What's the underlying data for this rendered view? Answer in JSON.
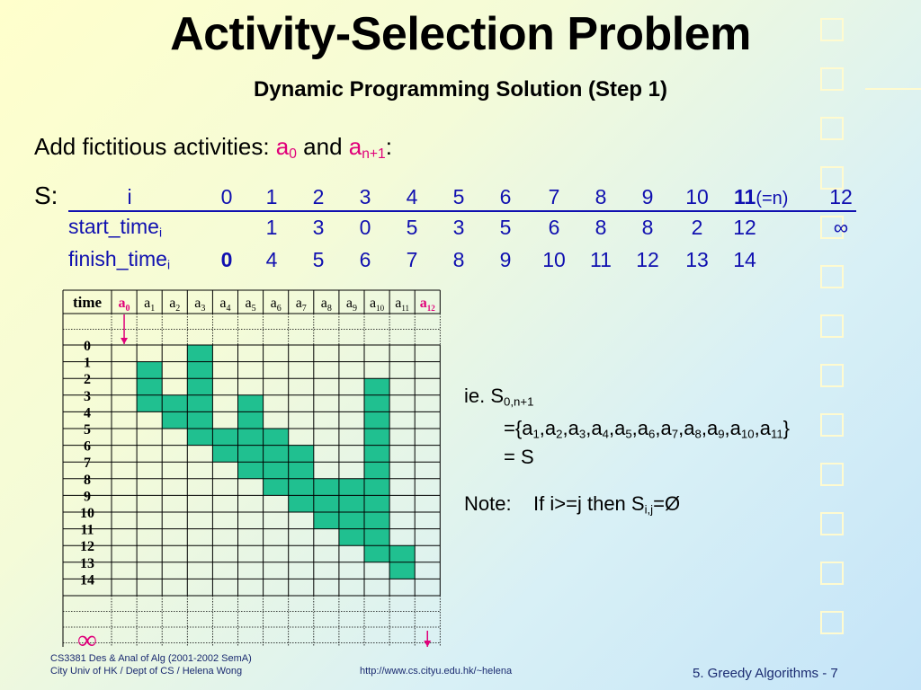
{
  "title": "Activity-Selection Problem",
  "subtitle": "Dynamic Programming Solution (Step 1)",
  "intro": {
    "prefix": "Add fictitious activities: ",
    "a0": "a",
    "a0_sub": "0",
    "and": " and ",
    "an1": "a",
    "an1_sub": "n+1",
    "suffix": ":"
  },
  "s_label": "S:",
  "table": {
    "row_i_label": "i",
    "row_start_label": "start_time",
    "row_start_sub": "i",
    "row_finish_label": "finish_time",
    "row_finish_sub": "i",
    "i_values": [
      "0",
      "1",
      "2",
      "3",
      "4",
      "5",
      "6",
      "7",
      "8",
      "9",
      "10",
      "11",
      "12"
    ],
    "i_11_note": "(=n)",
    "start_values": [
      "",
      "1",
      "3",
      "0",
      "5",
      "3",
      "5",
      "6",
      "8",
      "8",
      "2",
      "12",
      "∞"
    ],
    "finish_values": [
      "0",
      "4",
      "5",
      "6",
      "7",
      "8",
      "9",
      "10",
      "11",
      "12",
      "13",
      "14",
      ""
    ]
  },
  "grid": {
    "time_header": "time",
    "col_headers": [
      {
        "base": "a",
        "sub": "0",
        "red": true
      },
      {
        "base": "a",
        "sub": "1",
        "red": false
      },
      {
        "base": "a",
        "sub": "2",
        "red": false
      },
      {
        "base": "a",
        "sub": "3",
        "red": false
      },
      {
        "base": "a",
        "sub": "4",
        "red": false
      },
      {
        "base": "a",
        "sub": "5",
        "red": false
      },
      {
        "base": "a",
        "sub": "6",
        "red": false
      },
      {
        "base": "a",
        "sub": "7",
        "red": false
      },
      {
        "base": "a",
        "sub": "8",
        "red": false
      },
      {
        "base": "a",
        "sub": "9",
        "red": false
      },
      {
        "base": "a",
        "sub": "10",
        "red": false
      },
      {
        "base": "a",
        "sub": "11",
        "red": false
      },
      {
        "base": "a",
        "sub": "12",
        "red": true
      }
    ],
    "row_labels": [
      "0",
      "1",
      "2",
      "3",
      "4",
      "5",
      "6",
      "7",
      "8",
      "9",
      "10",
      "11",
      "12",
      "13",
      "14"
    ],
    "activities": [
      {
        "col": 1,
        "start": 1,
        "finish": 4
      },
      {
        "col": 2,
        "start": 3,
        "finish": 5
      },
      {
        "col": 3,
        "start": 0,
        "finish": 6
      },
      {
        "col": 4,
        "start": 5,
        "finish": 7
      },
      {
        "col": 5,
        "start": 3,
        "finish": 8
      },
      {
        "col": 6,
        "start": 5,
        "finish": 9
      },
      {
        "col": 7,
        "start": 6,
        "finish": 10
      },
      {
        "col": 8,
        "start": 8,
        "finish": 11
      },
      {
        "col": 9,
        "start": 8,
        "finish": 12
      },
      {
        "col": 10,
        "start": 2,
        "finish": 13
      },
      {
        "col": 11,
        "start": 12,
        "finish": 14
      }
    ],
    "fill_color": "#20c090",
    "infinity": "∞"
  },
  "right": {
    "ie_prefix": "ie. S",
    "ie_sub": "0,n+1",
    "set_line": "={a1,a2,a3,a4,a5,a6,a7,a8,a9,a10,a11}",
    "equals_s": "= S",
    "note_label": "Note:",
    "note_text_prefix": "If i>=j then S",
    "note_sub": "i,j",
    "note_suffix": "=Ø"
  },
  "footer": {
    "line1": "CS3381 Des & Anal of Alg (2001-2002 SemA)",
    "line2": "City Univ of HK / Dept of CS / Helena Wong",
    "url": "http://www.cs.cityu.edu.hk/~helena",
    "page": "5. Greedy Algorithms - 7"
  },
  "colors": {
    "accent_red": "#e0007a",
    "table_blue": "#1010b0",
    "grid_fill": "#20c090"
  }
}
